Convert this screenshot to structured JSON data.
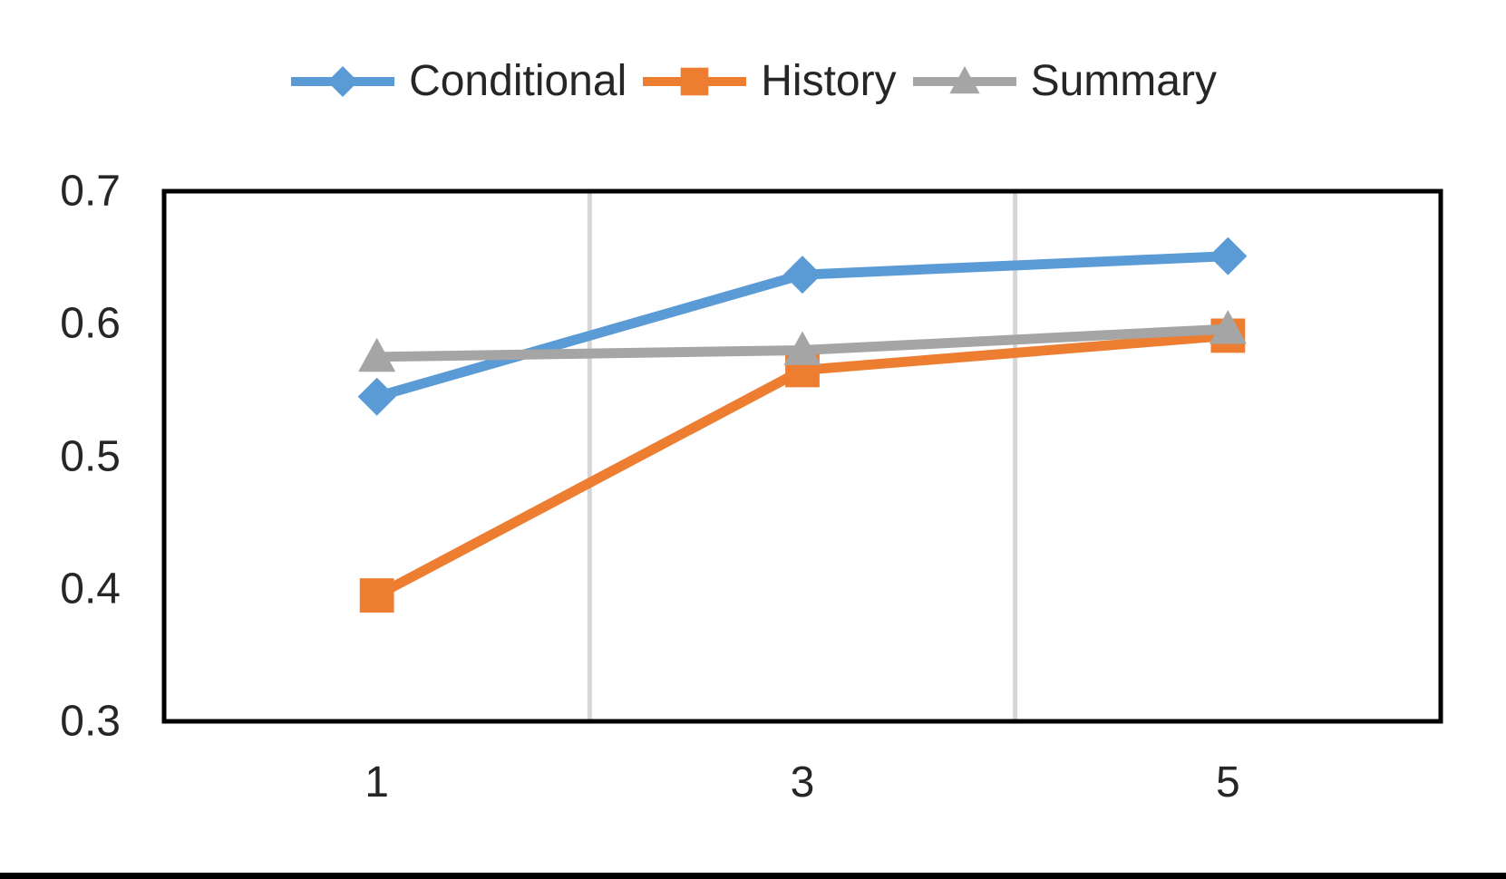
{
  "page": {
    "background": "#ffffff",
    "bottom_bar_color": "#000000"
  },
  "legend": {
    "position": "top-center",
    "items": [
      {
        "label": "Conditional",
        "marker": "diamond",
        "color": "#5B9BD5"
      },
      {
        "label": "History",
        "marker": "square",
        "color": "#ED7D31"
      },
      {
        "label": "Summary",
        "marker": "triangle",
        "color": "#A5A5A5"
      }
    ]
  },
  "chart_data": {
    "type": "line",
    "title": "",
    "xlabel": "",
    "ylabel": "",
    "categories": [
      1,
      3,
      5
    ],
    "series": [
      {
        "name": "Conditional",
        "marker": "diamond",
        "color": "#5B9BD5",
        "values": [
          0.545,
          0.637,
          0.651
        ]
      },
      {
        "name": "History",
        "marker": "square",
        "color": "#ED7D31",
        "values": [
          0.395,
          0.565,
          0.591
        ]
      },
      {
        "name": "Summary",
        "marker": "triangle",
        "color": "#A5A5A5",
        "values": [
          0.575,
          0.58,
          0.596
        ]
      }
    ],
    "ylim": [
      0.3,
      0.7
    ],
    "yticks": [
      "0.3",
      "0.4",
      "0.5",
      "0.6",
      "0.7"
    ],
    "xticks": [
      "1",
      "3",
      "5"
    ],
    "grid": "vertical-only",
    "vertical_gridlines_between_categories": true,
    "gridline_color": "#D6D6D6",
    "frame_color": "#000000",
    "axis_text_color": "#262626",
    "legend_position": "top"
  }
}
